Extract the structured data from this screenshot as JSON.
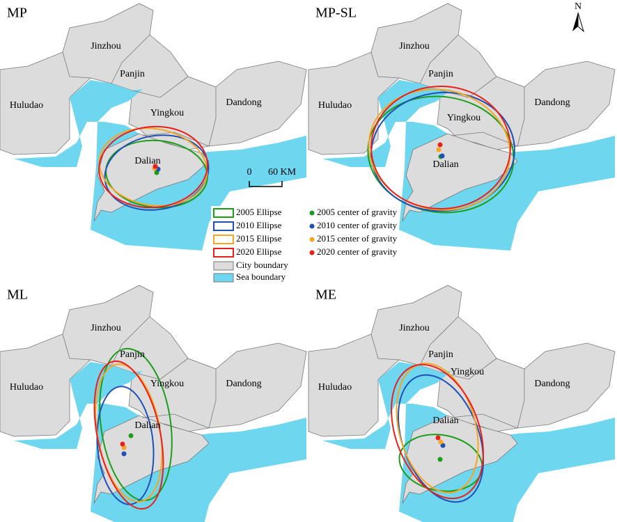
{
  "panels": [
    {
      "title": "MP",
      "labels": [
        "Jinzhou",
        "Panjin",
        "Huludao",
        "Yingkou",
        "Dandong",
        "Dalian"
      ]
    },
    {
      "title": "MP-SL",
      "labels": [
        "Jinzhou",
        "Panjin",
        "Huludao",
        "Yingkou",
        "Dandong",
        "Dalian"
      ]
    },
    {
      "title": "ML",
      "labels": [
        "Jinzhou",
        "Panjin",
        "Huludao",
        "Yingkou",
        "Dandong",
        "Dalian"
      ]
    },
    {
      "title": "ME",
      "labels": [
        "Jinzhou",
        "Panjin",
        "Huludao",
        "Yingkou",
        "Dandong",
        "Dalian"
      ]
    }
  ],
  "legend": {
    "ellipses": [
      {
        "label": "2005 Ellipse",
        "color": "#1a9e1a"
      },
      {
        "label": "2010 Ellipse",
        "color": "#1f4fb5"
      },
      {
        "label": "2015 Ellipse",
        "color": "#f5a623"
      },
      {
        "label": "2020 Ellipse",
        "color": "#e8201c"
      }
    ],
    "centers": [
      {
        "label": "2005 center of gravity",
        "color": "#1a9e1a"
      },
      {
        "label": "2010 center of gravity",
        "color": "#1f4fb5"
      },
      {
        "label": "2015 center of gravity",
        "color": "#f5a623"
      },
      {
        "label": "2020 center of gravity",
        "color": "#e8201c"
      }
    ],
    "city": {
      "label": "City boundary",
      "color": "#dcdcdc"
    },
    "sea": {
      "label": "Sea boundary",
      "color": "#6fd6f0"
    }
  },
  "scale_bar": {
    "start": "0",
    "end": "60 KM"
  },
  "north": "N"
}
